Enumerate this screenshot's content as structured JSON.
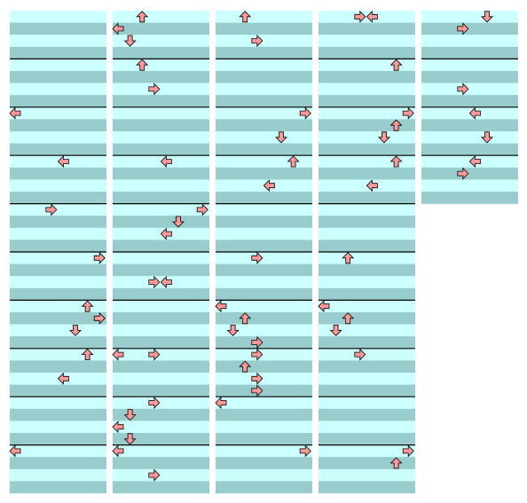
{
  "step_chart": {
    "beats_per_measure": 4,
    "lanes": 8,
    "columns": [
      {
        "measures": 10,
        "notes": [
          [
            8,
            0,
            "left"
          ],
          [
            12,
            4,
            "left"
          ],
          [
            16,
            3,
            "right"
          ],
          [
            20,
            7,
            "right"
          ],
          [
            24,
            6,
            "up"
          ],
          [
            25,
            7,
            "right"
          ],
          [
            26,
            5,
            "down"
          ],
          [
            28,
            6,
            "up"
          ],
          [
            30,
            4,
            "left"
          ],
          [
            36,
            0,
            "left"
          ]
        ]
      },
      {
        "measures": 10,
        "notes": [
          [
            0,
            2,
            "up"
          ],
          [
            1,
            0,
            "left"
          ],
          [
            2,
            1,
            "down"
          ],
          [
            4,
            2,
            "up"
          ],
          [
            6,
            3,
            "right"
          ],
          [
            12,
            4,
            "left"
          ],
          [
            16,
            7,
            "right"
          ],
          [
            17,
            5,
            "down"
          ],
          [
            18,
            4,
            "left"
          ],
          [
            22,
            3,
            "right"
          ],
          [
            22,
            4,
            "left"
          ],
          [
            28,
            0,
            "left"
          ],
          [
            28,
            3,
            "right"
          ],
          [
            32,
            3,
            "right"
          ],
          [
            33,
            1,
            "down"
          ],
          [
            34,
            0,
            "left"
          ],
          [
            35,
            1,
            "down"
          ],
          [
            36,
            0,
            "left"
          ],
          [
            38,
            3,
            "right"
          ]
        ]
      },
      {
        "measures": 10,
        "notes": [
          [
            0,
            2,
            "up"
          ],
          [
            2,
            3,
            "right"
          ],
          [
            8,
            7,
            "right"
          ],
          [
            10,
            5,
            "down"
          ],
          [
            12,
            6,
            "up"
          ],
          [
            14,
            4,
            "left"
          ],
          [
            20,
            3,
            "right"
          ],
          [
            24,
            0,
            "left"
          ],
          [
            25,
            2,
            "up"
          ],
          [
            26,
            1,
            "down"
          ],
          [
            27,
            3,
            "right"
          ],
          [
            28,
            3,
            "right"
          ],
          [
            29,
            2,
            "up"
          ],
          [
            30,
            3,
            "right"
          ],
          [
            31,
            3,
            "right"
          ],
          [
            32,
            0,
            "left"
          ],
          [
            36,
            7,
            "right"
          ]
        ]
      },
      {
        "measures": 10,
        "notes": [
          [
            0,
            3,
            "right"
          ],
          [
            0,
            4,
            "left"
          ],
          [
            4,
            6,
            "up"
          ],
          [
            8,
            7,
            "right"
          ],
          [
            9,
            6,
            "up"
          ],
          [
            10,
            5,
            "down"
          ],
          [
            12,
            6,
            "up"
          ],
          [
            14,
            4,
            "left"
          ],
          [
            20,
            2,
            "up"
          ],
          [
            24,
            0,
            "left"
          ],
          [
            25,
            2,
            "up"
          ],
          [
            26,
            1,
            "down"
          ],
          [
            28,
            3,
            "right"
          ],
          [
            36,
            7,
            "right"
          ],
          [
            37,
            6,
            "up"
          ]
        ]
      },
      {
        "measures": 4,
        "notes": [
          [
            0,
            5,
            "down"
          ],
          [
            1,
            3,
            "right"
          ],
          [
            6,
            3,
            "right"
          ],
          [
            8,
            4,
            "left"
          ],
          [
            10,
            5,
            "down"
          ],
          [
            12,
            4,
            "left"
          ],
          [
            13,
            3,
            "right"
          ]
        ]
      }
    ]
  }
}
